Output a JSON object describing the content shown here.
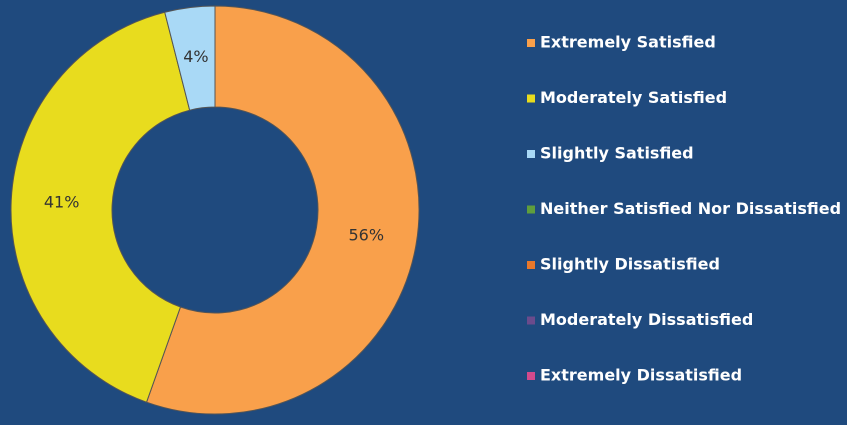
{
  "chart_data": {
    "type": "donut",
    "categories": [
      "Extremely Satisfied",
      "Moderately Satisfied",
      "Slightly Satisfied",
      "Neither Satisfied Nor Dissatisfied",
      "Slightly Dissatisfied",
      "Moderately Dissatisfied",
      "Extremely Dissatisfied"
    ],
    "values": [
      56,
      41,
      4,
      0,
      0,
      0,
      0
    ],
    "value_labels": [
      "56%",
      "41%",
      "4%",
      null,
      null,
      null,
      null
    ],
    "colors": [
      "#f9a04b",
      "#e8dc1e",
      "#a9d9f6",
      "#5f9e3c",
      "#e8782a",
      "#6b4b8c",
      "#d24a8c"
    ],
    "legend": "right"
  }
}
